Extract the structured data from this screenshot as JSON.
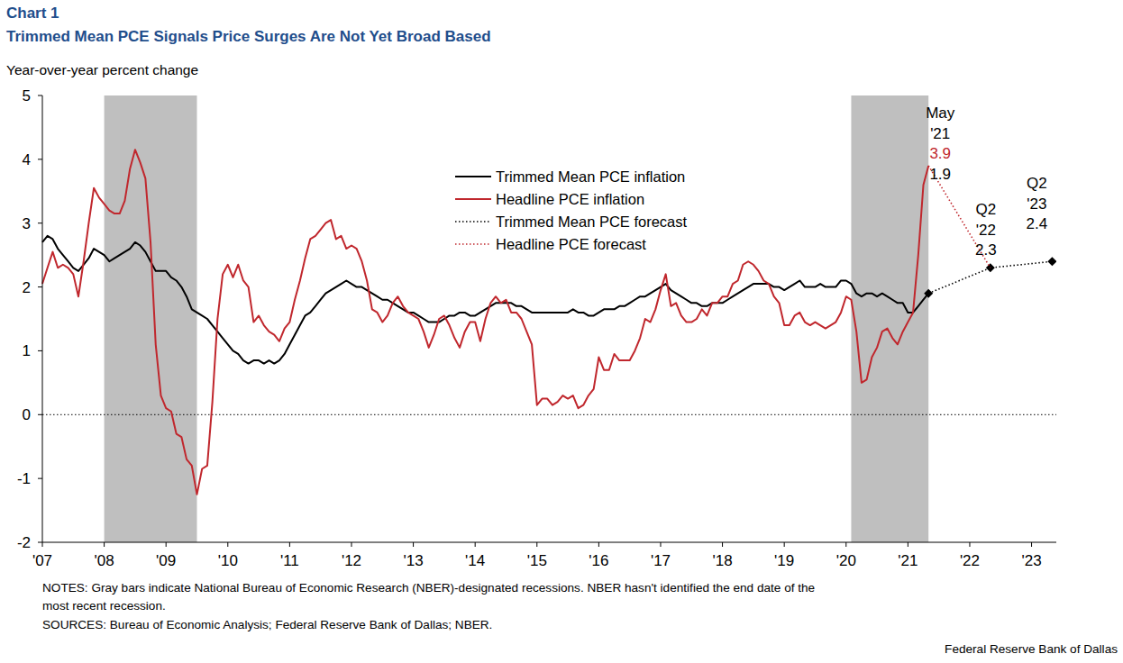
{
  "chart_data": {
    "type": "line",
    "chart_label": "Chart 1",
    "title": "Trimmed Mean PCE Signals Price Surges Are Not Yet Broad Based",
    "y_label": "Year-over-year percent change",
    "notes": [
      "NOTES: Gray bars indicate National Bureau of Economic Research (NBER)-designated recessions. NBER hasn't identified the end date of the",
      "most recent recession."
    ],
    "sources": "SOURCES: Bureau of Economic Analysis; Federal Reserve Bank of Dallas; NBER.",
    "credit": "Federal Reserve Bank of Dallas",
    "xlim": [
      2007,
      2023.4
    ],
    "xticks": [
      {
        "value": 2007,
        "label": "'07"
      },
      {
        "value": 2008,
        "label": "'08"
      },
      {
        "value": 2009,
        "label": "'09"
      },
      {
        "value": 2010,
        "label": "'10"
      },
      {
        "value": 2011,
        "label": "'11"
      },
      {
        "value": 2012,
        "label": "'12"
      },
      {
        "value": 2013,
        "label": "'13"
      },
      {
        "value": 2014,
        "label": "'14"
      },
      {
        "value": 2015,
        "label": "'15"
      },
      {
        "value": 2016,
        "label": "'16"
      },
      {
        "value": 2017,
        "label": "'17"
      },
      {
        "value": 2018,
        "label": "'18"
      },
      {
        "value": 2019,
        "label": "'19"
      },
      {
        "value": 2020,
        "label": "'20"
      },
      {
        "value": 2021,
        "label": "'21"
      },
      {
        "value": 2022,
        "label": "'22"
      },
      {
        "value": 2023,
        "label": "'23"
      }
    ],
    "ylim": [
      -2,
      5
    ],
    "yticks": [
      -2,
      -1,
      0,
      1,
      2,
      3,
      4,
      5
    ],
    "grid": false,
    "legend": "top",
    "reference_line": 0,
    "recessions": [
      {
        "start": 2008.0,
        "end": 2009.5
      },
      {
        "start": 2020.083,
        "end": 2021.333
      }
    ],
    "x": [
      2007,
      2007.083,
      2007.167,
      2007.25,
      2007.333,
      2007.417,
      2007.5,
      2007.583,
      2007.667,
      2007.75,
      2007.833,
      2007.917,
      2008,
      2008.083,
      2008.167,
      2008.25,
      2008.333,
      2008.417,
      2008.5,
      2008.583,
      2008.667,
      2008.75,
      2008.833,
      2008.917,
      2009,
      2009.083,
      2009.167,
      2009.25,
      2009.333,
      2009.417,
      2009.5,
      2009.583,
      2009.667,
      2009.75,
      2009.833,
      2009.917,
      2010,
      2010.083,
      2010.167,
      2010.25,
      2010.333,
      2010.417,
      2010.5,
      2010.583,
      2010.667,
      2010.75,
      2010.833,
      2010.917,
      2011,
      2011.083,
      2011.167,
      2011.25,
      2011.333,
      2011.417,
      2011.5,
      2011.583,
      2011.667,
      2011.75,
      2011.833,
      2011.917,
      2012,
      2012.083,
      2012.167,
      2012.25,
      2012.333,
      2012.417,
      2012.5,
      2012.583,
      2012.667,
      2012.75,
      2012.833,
      2012.917,
      2013,
      2013.083,
      2013.167,
      2013.25,
      2013.333,
      2013.417,
      2013.5,
      2013.583,
      2013.667,
      2013.75,
      2013.833,
      2013.917,
      2014,
      2014.083,
      2014.167,
      2014.25,
      2014.333,
      2014.417,
      2014.5,
      2014.583,
      2014.667,
      2014.75,
      2014.833,
      2014.917,
      2015,
      2015.083,
      2015.167,
      2015.25,
      2015.333,
      2015.417,
      2015.5,
      2015.583,
      2015.667,
      2015.75,
      2015.833,
      2015.917,
      2016,
      2016.083,
      2016.167,
      2016.25,
      2016.333,
      2016.417,
      2016.5,
      2016.583,
      2016.667,
      2016.75,
      2016.833,
      2016.917,
      2017,
      2017.083,
      2017.167,
      2017.25,
      2017.333,
      2017.417,
      2017.5,
      2017.583,
      2017.667,
      2017.75,
      2017.833,
      2017.917,
      2018,
      2018.083,
      2018.167,
      2018.25,
      2018.333,
      2018.417,
      2018.5,
      2018.583,
      2018.667,
      2018.75,
      2018.833,
      2018.917,
      2019,
      2019.083,
      2019.167,
      2019.25,
      2019.333,
      2019.417,
      2019.5,
      2019.583,
      2019.667,
      2019.75,
      2019.833,
      2019.917,
      2020,
      2020.083,
      2020.167,
      2020.25,
      2020.333,
      2020.417,
      2020.5,
      2020.583,
      2020.667,
      2020.75,
      2020.833,
      2020.917,
      2021,
      2021.083,
      2021.167,
      2021.25,
      2021.333
    ],
    "series": [
      {
        "name": "Trimmed Mean PCE inflation",
        "color": "#000000",
        "line_style": "solid",
        "values": [
          2.7,
          2.8,
          2.75,
          2.6,
          2.5,
          2.4,
          2.3,
          2.25,
          2.35,
          2.45,
          2.6,
          2.55,
          2.5,
          2.4,
          2.45,
          2.5,
          2.55,
          2.6,
          2.7,
          2.65,
          2.55,
          2.4,
          2.25,
          2.25,
          2.25,
          2.15,
          2.1,
          2.0,
          1.85,
          1.65,
          1.6,
          1.55,
          1.5,
          1.4,
          1.3,
          1.2,
          1.1,
          1.0,
          0.95,
          0.85,
          0.8,
          0.85,
          0.85,
          0.8,
          0.85,
          0.8,
          0.85,
          0.95,
          1.1,
          1.25,
          1.4,
          1.55,
          1.6,
          1.7,
          1.8,
          1.9,
          1.95,
          2.0,
          2.05,
          2.1,
          2.05,
          2.0,
          2.0,
          1.95,
          1.9,
          1.85,
          1.8,
          1.8,
          1.75,
          1.7,
          1.65,
          1.6,
          1.6,
          1.55,
          1.5,
          1.45,
          1.45,
          1.45,
          1.5,
          1.55,
          1.55,
          1.6,
          1.6,
          1.55,
          1.55,
          1.6,
          1.65,
          1.7,
          1.75,
          1.75,
          1.75,
          1.75,
          1.7,
          1.7,
          1.65,
          1.6,
          1.6,
          1.6,
          1.6,
          1.6,
          1.6,
          1.6,
          1.6,
          1.65,
          1.6,
          1.6,
          1.55,
          1.55,
          1.6,
          1.65,
          1.65,
          1.65,
          1.7,
          1.7,
          1.75,
          1.8,
          1.85,
          1.85,
          1.9,
          1.95,
          2.0,
          2.05,
          1.95,
          1.9,
          1.85,
          1.8,
          1.75,
          1.75,
          1.7,
          1.7,
          1.75,
          1.75,
          1.75,
          1.8,
          1.85,
          1.9,
          1.95,
          2.0,
          2.05,
          2.05,
          2.05,
          2.05,
          2.0,
          2.0,
          1.95,
          2.0,
          2.05,
          2.1,
          2.0,
          2.0,
          2.0,
          2.05,
          2.0,
          2.0,
          2.0,
          2.1,
          2.1,
          2.05,
          1.9,
          1.85,
          1.9,
          1.9,
          1.85,
          1.9,
          1.85,
          1.8,
          1.75,
          1.75,
          1.6,
          1.6,
          1.7,
          1.8,
          1.9
        ]
      },
      {
        "name": "Headline PCE inflation",
        "color": "#c0272d",
        "line_style": "solid",
        "values": [
          2.05,
          2.3,
          2.55,
          2.3,
          2.35,
          2.3,
          2.2,
          1.85,
          2.4,
          3.0,
          3.55,
          3.4,
          3.3,
          3.2,
          3.15,
          3.15,
          3.35,
          3.85,
          4.15,
          3.95,
          3.7,
          2.7,
          1.1,
          0.3,
          0.1,
          0.05,
          -0.3,
          -0.35,
          -0.7,
          -0.8,
          -1.25,
          -0.85,
          -0.8,
          0.2,
          1.5,
          2.2,
          2.35,
          2.15,
          2.35,
          2.1,
          2.0,
          1.45,
          1.55,
          1.4,
          1.3,
          1.25,
          1.15,
          1.35,
          1.45,
          1.8,
          2.1,
          2.45,
          2.75,
          2.8,
          2.9,
          3.0,
          3.05,
          2.75,
          2.8,
          2.6,
          2.65,
          2.6,
          2.4,
          2.1,
          1.65,
          1.6,
          1.45,
          1.55,
          1.75,
          1.85,
          1.7,
          1.6,
          1.55,
          1.5,
          1.3,
          1.05,
          1.25,
          1.5,
          1.55,
          1.4,
          1.2,
          1.05,
          1.3,
          1.45,
          1.45,
          1.15,
          1.5,
          1.75,
          1.85,
          1.75,
          1.8,
          1.6,
          1.6,
          1.5,
          1.3,
          1.1,
          0.15,
          0.25,
          0.25,
          0.15,
          0.2,
          0.3,
          0.25,
          0.3,
          0.1,
          0.15,
          0.3,
          0.4,
          0.9,
          0.7,
          0.7,
          0.95,
          0.85,
          0.85,
          0.85,
          1.0,
          1.2,
          1.5,
          1.45,
          1.65,
          1.95,
          2.2,
          1.7,
          1.75,
          1.55,
          1.45,
          1.45,
          1.5,
          1.65,
          1.55,
          1.75,
          1.75,
          1.85,
          1.85,
          2.05,
          2.1,
          2.35,
          2.4,
          2.35,
          2.25,
          2.1,
          2.05,
          1.85,
          1.75,
          1.4,
          1.4,
          1.55,
          1.6,
          1.45,
          1.4,
          1.45,
          1.4,
          1.35,
          1.4,
          1.45,
          1.6,
          1.85,
          1.8,
          1.3,
          0.5,
          0.55,
          0.9,
          1.05,
          1.3,
          1.35,
          1.2,
          1.1,
          1.3,
          1.45,
          1.6,
          2.5,
          3.6,
          3.9
        ]
      },
      {
        "name": "Trimmed Mean PCE forecast",
        "color": "#000000",
        "line_style": "dotted",
        "marker": "diamond",
        "x": [
          2021.333,
          2022.333,
          2023.333
        ],
        "values": [
          1.9,
          2.3,
          2.4
        ]
      },
      {
        "name": "Headline PCE forecast",
        "color": "#c0272d",
        "line_style": "dotted",
        "x": [
          2021.333,
          2022.333
        ],
        "values": [
          3.9,
          2.3
        ]
      }
    ],
    "annotations": [
      [
        "May",
        "'21"
      ],
      [
        "Q2",
        "'22"
      ],
      [
        "Q2",
        "'23"
      ]
    ]
  }
}
